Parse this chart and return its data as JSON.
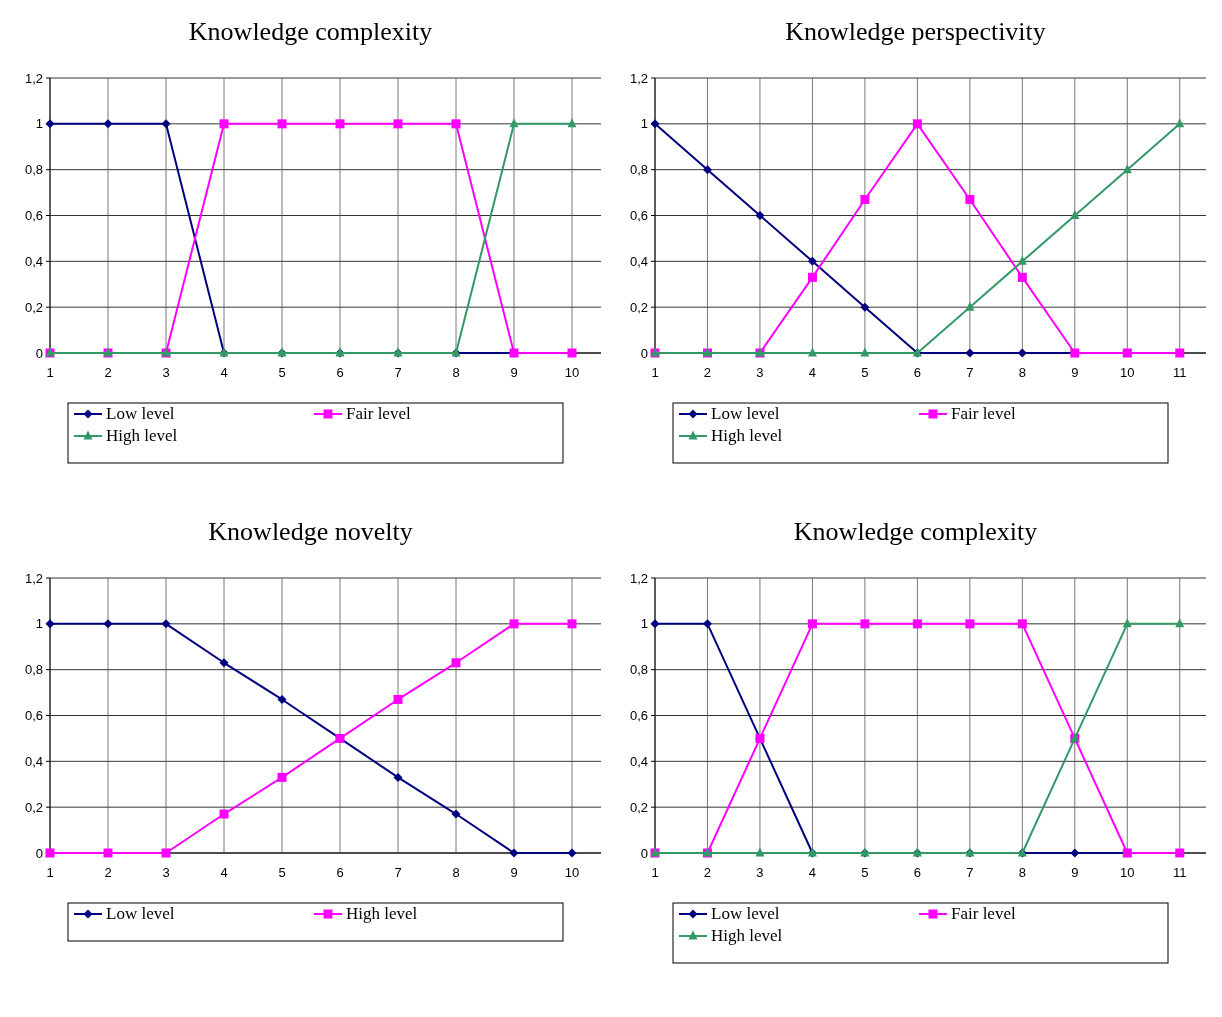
{
  "chart_data": [
    {
      "type": "line",
      "title": "Knowledge complexity",
      "categories": [
        "1",
        "2",
        "3",
        "4",
        "5",
        "6",
        "7",
        "8",
        "9",
        "10"
      ],
      "ylim": [
        0,
        1.2
      ],
      "yticks": [
        {
          "value": 0,
          "label": "0"
        },
        {
          "value": 0.2,
          "label": "0,2"
        },
        {
          "value": 0.4,
          "label": "0,4"
        },
        {
          "value": 0.6,
          "label": "0,6"
        },
        {
          "value": 0.8,
          "label": "0,8"
        },
        {
          "value": 1,
          "label": "1"
        },
        {
          "value": 1.2,
          "label": "1,2"
        }
      ],
      "grid": true,
      "legend": "bottom",
      "series": [
        {
          "name": "Low level",
          "color": "#000080",
          "marker": "diamond",
          "values": [
            1,
            1,
            1,
            0,
            0,
            0,
            0,
            0,
            0,
            null
          ]
        },
        {
          "name": "Fair level",
          "color": "#ff00ff",
          "marker": "square",
          "values": [
            0,
            0,
            0,
            1,
            1,
            1,
            1,
            1,
            0,
            0
          ]
        },
        {
          "name": "High level",
          "color": "#339966",
          "marker": "triangle",
          "values": [
            0,
            0,
            0,
            0,
            0,
            0,
            0,
            0,
            1,
            1
          ]
        }
      ]
    },
    {
      "type": "line",
      "title": "Knowledge perspectivity",
      "categories": [
        "1",
        "2",
        "3",
        "4",
        "5",
        "6",
        "7",
        "8",
        "9",
        "10",
        "11"
      ],
      "ylim": [
        0,
        1.2
      ],
      "yticks": [
        {
          "value": 0,
          "label": "0"
        },
        {
          "value": 0.2,
          "label": "0,2"
        },
        {
          "value": 0.4,
          "label": "0,4"
        },
        {
          "value": 0.6,
          "label": "0,6"
        },
        {
          "value": 0.8,
          "label": "0,8"
        },
        {
          "value": 1,
          "label": "1"
        },
        {
          "value": 1.2,
          "label": "1,2"
        }
      ],
      "grid": true,
      "legend": "bottom",
      "series": [
        {
          "name": "Low level",
          "color": "#000080",
          "marker": "diamond",
          "values": [
            1,
            0.8,
            0.6,
            0.4,
            0.2,
            0,
            0,
            0,
            0,
            null,
            null
          ]
        },
        {
          "name": "Fair level",
          "color": "#ff00ff",
          "marker": "square",
          "values": [
            0,
            0,
            0,
            0.33,
            0.67,
            1,
            0.67,
            0.33,
            0,
            0,
            0
          ]
        },
        {
          "name": "High level",
          "color": "#339966",
          "marker": "triangle",
          "values": [
            0,
            0,
            0,
            0,
            0,
            0,
            0.2,
            0.4,
            0.6,
            0.8,
            1
          ]
        }
      ]
    },
    {
      "type": "line",
      "title": "Knowledge novelty",
      "categories": [
        "1",
        "2",
        "3",
        "4",
        "5",
        "6",
        "7",
        "8",
        "9",
        "10"
      ],
      "ylim": [
        0,
        1.2
      ],
      "yticks": [
        {
          "value": 0,
          "label": "0"
        },
        {
          "value": 0.2,
          "label": "0,2"
        },
        {
          "value": 0.4,
          "label": "0,4"
        },
        {
          "value": 0.6,
          "label": "0,6"
        },
        {
          "value": 0.8,
          "label": "0,8"
        },
        {
          "value": 1,
          "label": "1"
        },
        {
          "value": 1.2,
          "label": "1,2"
        }
      ],
      "grid": true,
      "legend": "bottom",
      "series": [
        {
          "name": "Low level",
          "color": "#000080",
          "marker": "diamond",
          "values": [
            1,
            1,
            1,
            0.83,
            0.67,
            0.5,
            0.33,
            0.17,
            0,
            0
          ]
        },
        {
          "name": "High level",
          "color": "#ff00ff",
          "marker": "square",
          "values": [
            0,
            0,
            0,
            0.17,
            0.33,
            0.5,
            0.67,
            0.83,
            1,
            1
          ]
        }
      ]
    },
    {
      "type": "line",
      "title": "Knowledge complexity",
      "categories": [
        "1",
        "2",
        "3",
        "4",
        "5",
        "6",
        "7",
        "8",
        "9",
        "10",
        "11"
      ],
      "ylim": [
        0,
        1.2
      ],
      "yticks": [
        {
          "value": 0,
          "label": "0"
        },
        {
          "value": 0.2,
          "label": "0,2"
        },
        {
          "value": 0.4,
          "label": "0,4"
        },
        {
          "value": 0.6,
          "label": "0,6"
        },
        {
          "value": 0.8,
          "label": "0,8"
        },
        {
          "value": 1,
          "label": "1"
        },
        {
          "value": 1.2,
          "label": "1,2"
        }
      ],
      "grid": true,
      "legend": "bottom",
      "series": [
        {
          "name": "Low level",
          "color": "#000080",
          "marker": "diamond",
          "values": [
            1,
            1,
            0.5,
            0,
            0,
            0,
            0,
            0,
            0,
            0,
            null
          ]
        },
        {
          "name": "Fair level",
          "color": "#ff00ff",
          "marker": "square",
          "values": [
            0,
            0,
            0.5,
            1,
            1,
            1,
            1,
            1,
            0.5,
            0,
            0
          ]
        },
        {
          "name": "High level",
          "color": "#339966",
          "marker": "triangle",
          "values": [
            0,
            0,
            0,
            0,
            0,
            0,
            0,
            0,
            0.5,
            1,
            1
          ]
        }
      ]
    }
  ]
}
